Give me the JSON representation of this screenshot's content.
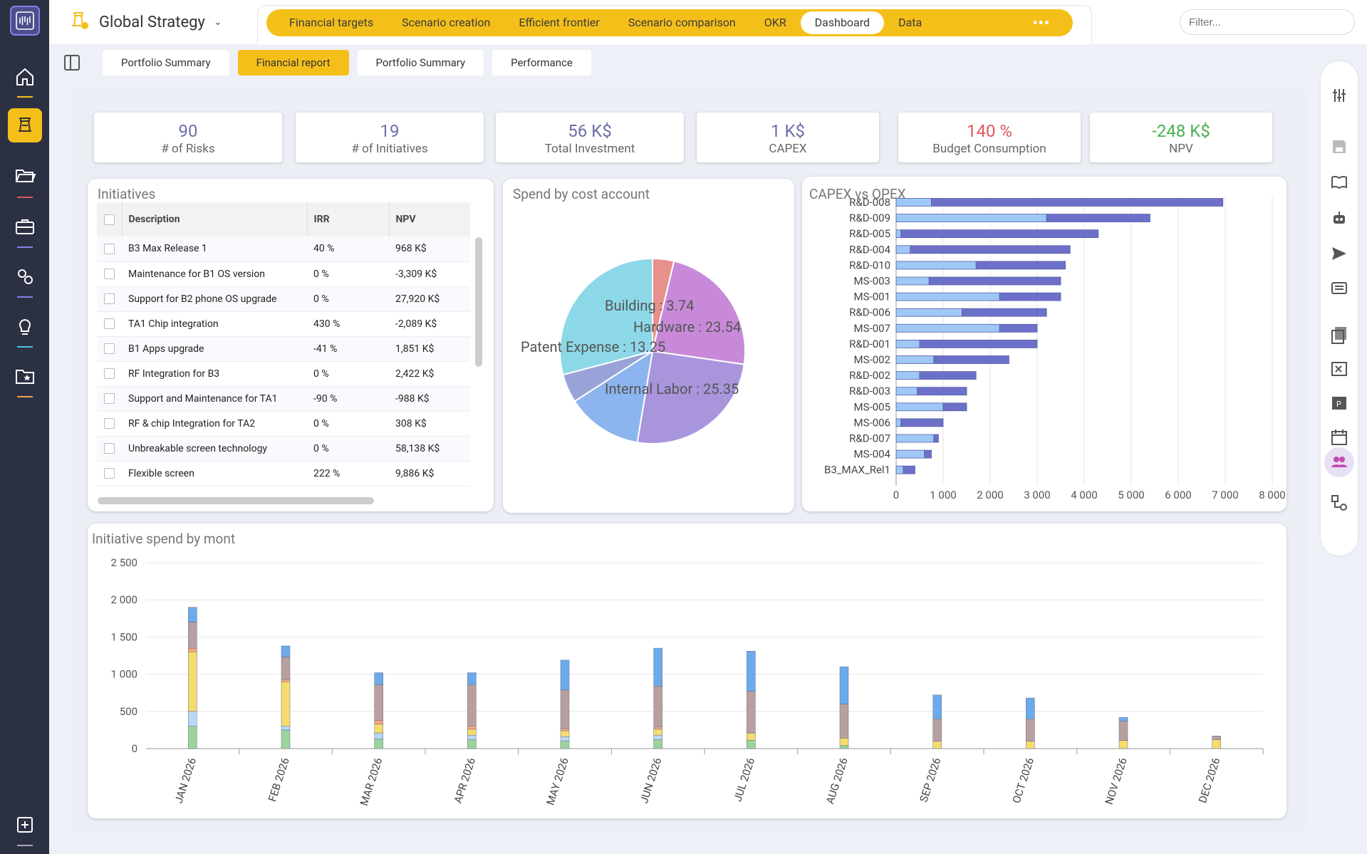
{
  "app": {
    "title": "Global Strategy",
    "filter_placeholder": "Filter..."
  },
  "menu": [
    "Financial targets",
    "Scenario creation",
    "Efficient frontier",
    "Scenario comparison",
    "OKR",
    "Dashboard",
    "Data"
  ],
  "menu_active": "Dashboard",
  "subtabs": [
    "Portfolio Summary",
    "Financial report",
    "Portfolio Summary",
    "Performance"
  ],
  "subtab_active": "Financial report",
  "kpis": [
    {
      "value": "90",
      "label": "# of Risks",
      "color": "#6b6fa8"
    },
    {
      "value": "19",
      "label": "# of Initiatives",
      "color": "#6b6fa8"
    },
    {
      "value": "56 K$",
      "label": "Total Investment",
      "color": "#6b6fa8"
    },
    {
      "value": "1 K$",
      "label": "CAPEX",
      "color": "#6b6fa8"
    },
    {
      "value": "140 %",
      "label": "Budget Consumption",
      "color": "#e05a5a"
    },
    {
      "value": "-248 K$",
      "label": "NPV",
      "color": "#4caf50"
    }
  ],
  "initiatives": {
    "title": "Initiatives",
    "columns": [
      "Description",
      "IRR",
      "NPV"
    ],
    "rows": [
      [
        "B3 Max Release 1",
        "40 %",
        "968 K$"
      ],
      [
        "Maintenance for B1 OS version",
        "0 %",
        "-3,309 K$"
      ],
      [
        "Support for B2 phone OS upgrade",
        "0 %",
        "27,920 K$"
      ],
      [
        "TA1 Chip integration",
        "430 %",
        "-2,089 K$"
      ],
      [
        "B1 Apps upgrade",
        "-41 %",
        "1,851 K$"
      ],
      [
        "RF Integration for B3",
        "0 %",
        "2,422 K$"
      ],
      [
        "Support and Maintenance for TA1",
        "-90 %",
        "-988 K$"
      ],
      [
        "RF & chip Integration for TA2",
        "0 %",
        "308 K$"
      ],
      [
        "Unbreakable screen technology",
        "0 %",
        "58,138 K$"
      ],
      [
        "Flexible screen",
        "222 %",
        "9,886 K$"
      ]
    ]
  },
  "chart_data": [
    {
      "type": "pie",
      "title": "Spend by cost account",
      "slices": [
        {
          "label": "Building",
          "value": 3.74,
          "color": "#e8908c"
        },
        {
          "label": "Hardware",
          "value": 23.54,
          "color": "#c88ad8"
        },
        {
          "label": "Internal Labor",
          "value": 25.35,
          "color": "#a995dc"
        },
        {
          "label": "Patent Expense",
          "value": 13.25,
          "color": "#8cb4ee"
        },
        {
          "label": "",
          "value": 5.0,
          "color": "#9aa3d8"
        },
        {
          "label": "",
          "value": 29.1,
          "color": "#8dd8e8"
        }
      ]
    },
    {
      "type": "bar",
      "title": "CAPEX vs OPEX",
      "orientation": "horizontal",
      "categories": [
        "R&D-008",
        "R&D-009",
        "R&D-005",
        "R&D-004",
        "R&D-010",
        "MS-003",
        "MS-001",
        "R&D-006",
        "MS-007",
        "R&D-001",
        "MS-002",
        "R&D-002",
        "R&D-003",
        "MS-005",
        "MS-006",
        "R&D-007",
        "MS-004",
        "B3_MAX_Rel1"
      ],
      "series": [
        {
          "values": [
            750,
            3200,
            100,
            300,
            1700,
            700,
            2200,
            1400,
            2200,
            500,
            800,
            500,
            450,
            1000,
            100,
            800,
            600,
            150
          ],
          "color": "#9ec8f5"
        },
        {
          "values": [
            6200,
            2200,
            4200,
            3400,
            1900,
            2800,
            1300,
            1800,
            800,
            2500,
            1600,
            1200,
            1050,
            500,
            900,
            100,
            150,
            250
          ],
          "color": "#6c70c8"
        }
      ],
      "xlim": [
        0,
        8000
      ],
      "xticks": [
        "0",
        "1 000",
        "2 000",
        "3 000",
        "4 000",
        "5 000",
        "6 000",
        "7 000",
        "8 000"
      ]
    },
    {
      "type": "bar",
      "title": "Initiative spend by mont",
      "stacked": true,
      "categories": [
        "JAN 2026",
        "FEB 2026",
        "MAR 2026",
        "APR 2026",
        "MAY 2026",
        "JUN 2026",
        "JUL 2026",
        "AUG 2026",
        "SEP 2026",
        "OCT 2026",
        "NOV 2026",
        "DEC 2026"
      ],
      "ylim": [
        0,
        2500
      ],
      "yticks": [
        "0",
        "500",
        "1 000",
        "1 500",
        "2 000",
        "2 500"
      ],
      "series": [
        {
          "color": "#9bd49b",
          "values": [
            300,
            250,
            130,
            120,
            100,
            120,
            110,
            40,
            0,
            0,
            0,
            0
          ]
        },
        {
          "color": "#b8d8f5",
          "values": [
            200,
            50,
            80,
            60,
            60,
            60,
            0,
            0,
            0,
            0,
            0,
            0
          ]
        },
        {
          "color": "#f5dc6c",
          "values": [
            800,
            600,
            120,
            80,
            80,
            80,
            100,
            100,
            100,
            100,
            110,
            120
          ]
        },
        {
          "color": "#f5a87c",
          "values": [
            50,
            30,
            50,
            40,
            30,
            30,
            0,
            0,
            0,
            0,
            0,
            0
          ]
        },
        {
          "color": "#b8a0a0",
          "values": [
            350,
            300,
            480,
            560,
            520,
            550,
            560,
            460,
            300,
            300,
            260,
            50
          ]
        },
        {
          "color": "#6aabeb",
          "values": [
            200,
            150,
            160,
            160,
            400,
            510,
            540,
            500,
            320,
            280,
            50,
            0
          ]
        }
      ]
    }
  ]
}
